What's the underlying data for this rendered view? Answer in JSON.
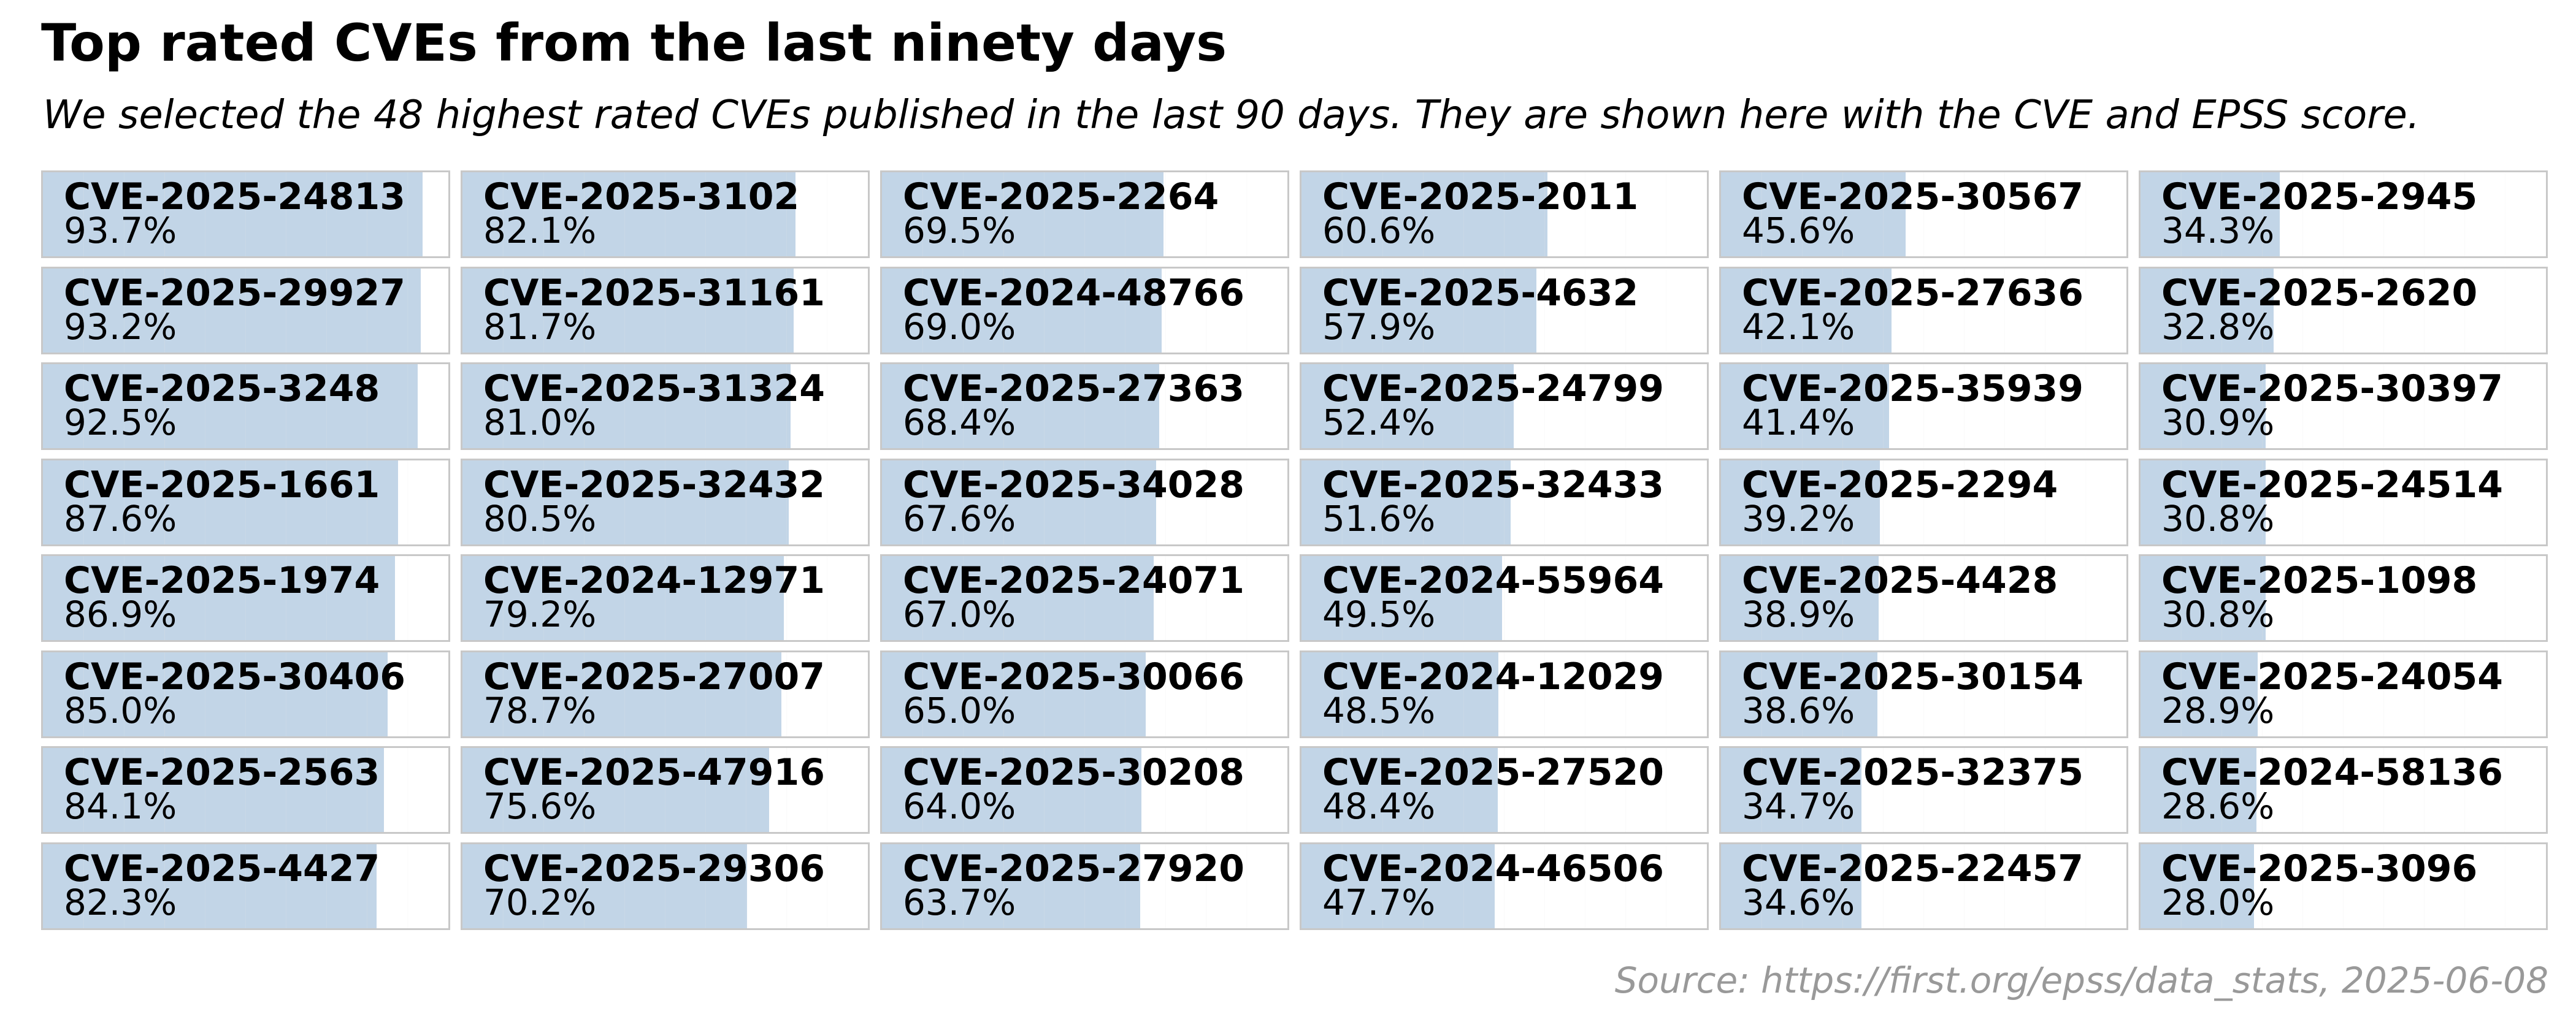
{
  "header": {
    "title": "Top rated CVEs from the last ninety days",
    "subtitle": "We selected the 48 highest rated CVEs published in the last 90 days. They are shown here with the CVE and EPSS score."
  },
  "footer": {
    "source": "Source: https://first.org/epss/data_stats, 2025-06-08"
  },
  "colors": {
    "bar": "#c2d5e7",
    "border": "#c8c8c8",
    "gridline": "#e6e6e6"
  },
  "chart_data": {
    "type": "bar",
    "title": "Top rated CVEs from the last ninety days",
    "subtitle": "We selected the 48 highest rated CVEs published in the last 90 days. They are shown here with the CVE and EPSS score.",
    "value_unit": "%",
    "xlim": [
      0,
      100
    ],
    "grid": true,
    "layout": "small-multiples 8 rows x 6 columns, column-major order",
    "categories": [
      "CVE-2025-24813",
      "CVE-2025-29927",
      "CVE-2025-3248",
      "CVE-2025-1661",
      "CVE-2025-1974",
      "CVE-2025-30406",
      "CVE-2025-2563",
      "CVE-2025-4427",
      "CVE-2025-3102",
      "CVE-2025-31161",
      "CVE-2025-31324",
      "CVE-2025-32432",
      "CVE-2024-12971",
      "CVE-2025-27007",
      "CVE-2025-47916",
      "CVE-2025-29306",
      "CVE-2025-2264",
      "CVE-2024-48766",
      "CVE-2025-27363",
      "CVE-2025-34028",
      "CVE-2025-24071",
      "CVE-2025-30066",
      "CVE-2025-30208",
      "CVE-2025-27920",
      "CVE-2025-2011",
      "CVE-2025-4632",
      "CVE-2025-24799",
      "CVE-2025-32433",
      "CVE-2024-55964",
      "CVE-2024-12029",
      "CVE-2025-27520",
      "CVE-2024-46506",
      "CVE-2025-30567",
      "CVE-2025-27636",
      "CVE-2025-35939",
      "CVE-2025-2294",
      "CVE-2025-4428",
      "CVE-2025-30154",
      "CVE-2025-32375",
      "CVE-2025-22457",
      "CVE-2025-2945",
      "CVE-2025-2620",
      "CVE-2025-30397",
      "CVE-2025-24514",
      "CVE-2025-1098",
      "CVE-2025-24054",
      "CVE-2024-58136",
      "CVE-2025-3096"
    ],
    "values": [
      93.7,
      93.2,
      92.5,
      87.6,
      86.9,
      85.0,
      84.1,
      82.3,
      82.1,
      81.7,
      81.0,
      80.5,
      79.2,
      78.7,
      75.6,
      70.2,
      69.5,
      69.0,
      68.4,
      67.6,
      67.0,
      65.0,
      64.0,
      63.7,
      60.6,
      57.9,
      52.4,
      51.6,
      49.5,
      48.5,
      48.4,
      47.7,
      45.6,
      42.1,
      41.4,
      39.2,
      38.9,
      38.6,
      34.7,
      34.6,
      34.3,
      32.8,
      30.9,
      30.8,
      30.8,
      28.9,
      28.6,
      28.0
    ],
    "labels": [
      "93.7%",
      "93.2%",
      "92.5%",
      "87.6%",
      "86.9%",
      "85.0%",
      "84.1%",
      "82.3%",
      "82.1%",
      "81.7%",
      "81.0%",
      "80.5%",
      "79.2%",
      "78.7%",
      "75.6%",
      "70.2%",
      "69.5%",
      "69.0%",
      "68.4%",
      "67.6%",
      "67.0%",
      "65.0%",
      "64.0%",
      "63.7%",
      "60.6%",
      "57.9%",
      "52.4%",
      "51.6%",
      "49.5%",
      "48.5%",
      "48.4%",
      "47.7%",
      "45.6%",
      "42.1%",
      "41.4%",
      "39.2%",
      "38.9%",
      "38.6%",
      "34.7%",
      "34.6%",
      "34.3%",
      "32.8%",
      "30.9%",
      "30.8%",
      "30.8%",
      "28.9%",
      "28.6%",
      "28.0%"
    ]
  }
}
